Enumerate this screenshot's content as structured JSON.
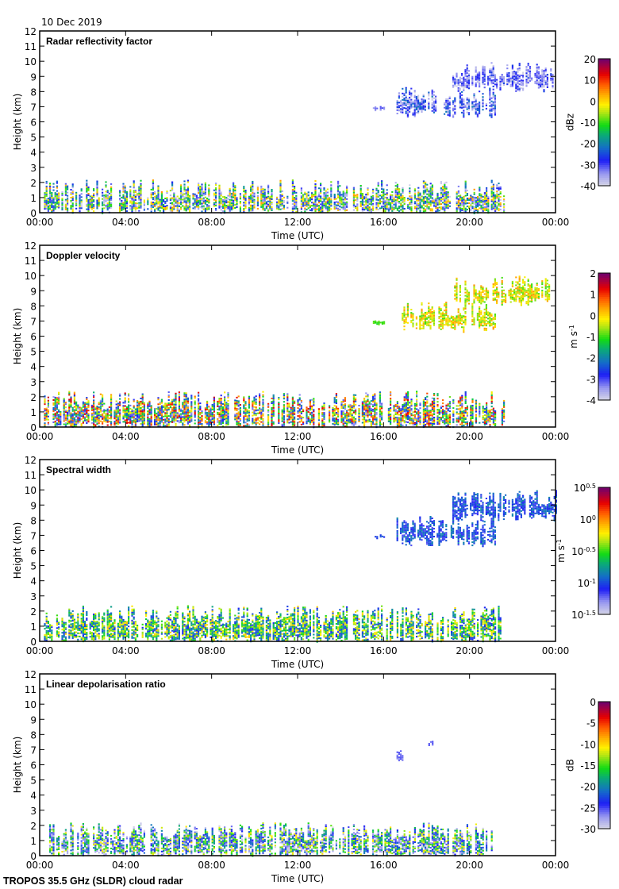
{
  "header": {
    "date": "10 Dec 2019"
  },
  "footer": {
    "instrument": "TROPOS 35.5 GHz (SLDR) cloud radar"
  },
  "chart_data": [
    {
      "type": "heatmap",
      "title": "Radar reflectivity factor",
      "xlabel": "Time (UTC)",
      "ylabel": "Height (km)",
      "xticks": [
        "00:00",
        "04:00",
        "08:00",
        "12:00",
        "16:00",
        "20:00",
        "00:00"
      ],
      "xlim_hours": [
        0,
        24
      ],
      "ylim": [
        0,
        12
      ],
      "yticks": [
        0,
        1,
        2,
        3,
        4,
        5,
        6,
        7,
        8,
        9,
        10,
        11,
        12
      ],
      "colorbar": {
        "label": "dBz",
        "min": -40,
        "max": 20,
        "ticks": [
          "20",
          "10",
          "0",
          "-10",
          "-20",
          "-30",
          "-40"
        ]
      },
      "cloud_layers": [
        {
          "t_start": 0.2,
          "t_end": 21.6,
          "h_base": 0.0,
          "h_top": 2.2,
          "value_range": [
            -40,
            5
          ],
          "description": "low-level cloud, mostly faint (-40 to -30 dBz), strongest 18:30-20:30 up to ~5 dBz"
        },
        {
          "t_start": 15.5,
          "t_end": 16.0,
          "h_base": 6.8,
          "h_top": 7.1,
          "value_range": [
            -35,
            -30
          ]
        },
        {
          "t_start": 16.6,
          "t_end": 21.2,
          "h_base": 6.3,
          "h_top": 8.3,
          "value_range": [
            -40,
            -20
          ]
        },
        {
          "t_start": 19.2,
          "t_end": 24.0,
          "h_base": 8.0,
          "h_top": 10.0,
          "value_range": [
            -40,
            -25
          ]
        }
      ]
    },
    {
      "type": "heatmap",
      "title": "Doppler velocity",
      "xlabel": "Time (UTC)",
      "ylabel": "Height (km)",
      "xticks": [
        "00:00",
        "04:00",
        "08:00",
        "12:00",
        "16:00",
        "20:00",
        "00:00"
      ],
      "xlim_hours": [
        0,
        24
      ],
      "ylim": [
        0,
        12
      ],
      "yticks": [
        0,
        1,
        2,
        3,
        4,
        5,
        6,
        7,
        8,
        9,
        10,
        11,
        12
      ],
      "colorbar": {
        "label": "m s-1",
        "min": -4,
        "max": 2,
        "ticks": [
          "2",
          "1",
          "0",
          "-1",
          "-2",
          "-3",
          "-4"
        ]
      },
      "cloud_layers": [
        {
          "t_start": 0.2,
          "t_end": 21.6,
          "h_base": 0.0,
          "h_top": 2.4,
          "value_range": [
            -3.5,
            1.5
          ]
        },
        {
          "t_start": 15.5,
          "t_end": 16.0,
          "h_base": 6.8,
          "h_top": 7.1,
          "value_range": [
            -1.2,
            -0.8
          ]
        },
        {
          "t_start": 16.6,
          "t_end": 21.2,
          "h_base": 6.3,
          "h_top": 8.3,
          "value_range": [
            -1,
            0.5
          ]
        },
        {
          "t_start": 19.2,
          "t_end": 24.0,
          "h_base": 8.0,
          "h_top": 10.0,
          "value_range": [
            -1,
            0.5
          ]
        }
      ]
    },
    {
      "type": "heatmap",
      "title": "Spectral width",
      "xlabel": "Time (UTC)",
      "ylabel": "Height (km)",
      "xticks": [
        "00:00",
        "04:00",
        "08:00",
        "12:00",
        "16:00",
        "20:00",
        "00:00"
      ],
      "xlim_hours": [
        0,
        24
      ],
      "ylim": [
        0,
        12
      ],
      "yticks": [
        0,
        1,
        2,
        3,
        4,
        5,
        6,
        7,
        8,
        9,
        10,
        11,
        12
      ],
      "colorbar": {
        "label": "m s-1",
        "scale": "log10",
        "min": -1.5,
        "max": 0.5,
        "ticks": [
          "10^0.5",
          "10^0",
          "10^-0.5",
          "10^-1",
          "10^-1.5"
        ]
      },
      "cloud_layers": [
        {
          "t_start": 0.2,
          "t_end": 21.6,
          "h_base": 0.0,
          "h_top": 2.4,
          "value_range": [
            -1.1,
            -0.1
          ]
        },
        {
          "t_start": 15.5,
          "t_end": 16.0,
          "h_base": 6.8,
          "h_top": 7.1,
          "value_range": [
            -1.1,
            -0.9
          ]
        },
        {
          "t_start": 16.6,
          "t_end": 21.2,
          "h_base": 6.3,
          "h_top": 8.3,
          "value_range": [
            -1.2,
            -0.8
          ]
        },
        {
          "t_start": 19.2,
          "t_end": 24.0,
          "h_base": 8.0,
          "h_top": 10.0,
          "value_range": [
            -1.2,
            -0.8
          ]
        }
      ]
    },
    {
      "type": "heatmap",
      "title": "Linear depolarisation ratio",
      "xlabel": "Time (UTC)",
      "ylabel": "Height (km)",
      "xticks": [
        "00:00",
        "04:00",
        "08:00",
        "12:00",
        "16:00",
        "20:00",
        "00:00"
      ],
      "xlim_hours": [
        0,
        24
      ],
      "ylim": [
        0,
        12
      ],
      "yticks": [
        0,
        1,
        2,
        3,
        4,
        5,
        6,
        7,
        8,
        9,
        10,
        11,
        12
      ],
      "colorbar": {
        "label": "dB",
        "min": -30,
        "max": 0,
        "ticks": [
          "0",
          "-5",
          "-10",
          "-15",
          "-20",
          "-25",
          "-30"
        ]
      },
      "cloud_layers": [
        {
          "t_start": 0.2,
          "t_end": 21.2,
          "h_base": 0.0,
          "h_top": 2.2,
          "value_range": [
            -30,
            -10
          ]
        },
        {
          "t_start": 16.6,
          "t_end": 16.9,
          "h_base": 6.3,
          "h_top": 7.0,
          "value_range": [
            -27,
            -25
          ]
        },
        {
          "t_start": 18.0,
          "t_end": 18.3,
          "h_base": 7.3,
          "h_top": 7.6,
          "value_range": [
            -27,
            -25
          ]
        }
      ]
    }
  ]
}
